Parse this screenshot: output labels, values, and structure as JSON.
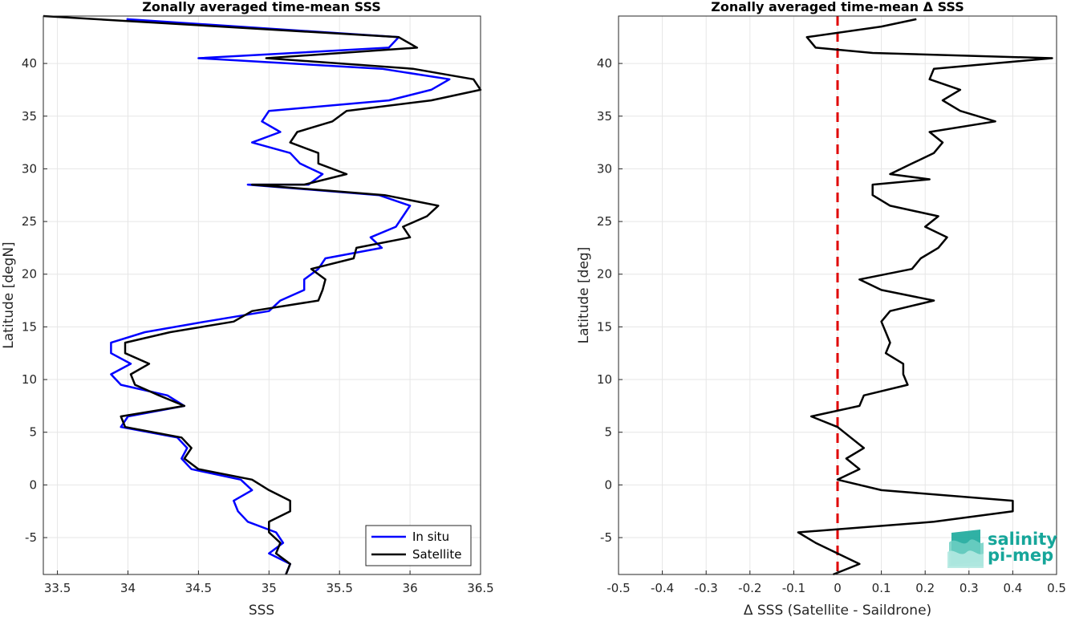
{
  "chart_data": [
    {
      "type": "line",
      "title": "Zonally averaged time-mean SSS",
      "xlabel": "SSS",
      "ylabel": "Latitude [degN]",
      "xlim": [
        33.4,
        36.5
      ],
      "ylim": [
        -8.5,
        44.5
      ],
      "xticks": [
        33.5,
        34,
        34.5,
        35,
        35.5,
        36,
        36.5
      ],
      "xtick_labels": [
        "33.5",
        "34",
        "34.5",
        "35",
        "35.5",
        "36",
        "36.5"
      ],
      "yticks": [
        -5,
        0,
        5,
        10,
        15,
        20,
        25,
        30,
        35,
        40
      ],
      "ytick_labels": [
        "-5",
        "0",
        "5",
        "10",
        "15",
        "20",
        "25",
        "30",
        "35",
        "40"
      ],
      "grid": true,
      "legend": "bottom-right",
      "series": [
        {
          "name": "In situ",
          "color": "#0000ff",
          "points": [
            [
              33.99,
              44.2
            ],
            [
              35.92,
              42.5
            ],
            [
              35.85,
              41.5
            ],
            [
              34.5,
              40.5
            ],
            [
              35.8,
              39.5
            ],
            [
              36.28,
              38.5
            ],
            [
              36.15,
              37.5
            ],
            [
              35.85,
              36.5
            ],
            [
              35.0,
              35.5
            ],
            [
              34.95,
              34.5
            ],
            [
              35.08,
              33.5
            ],
            [
              34.88,
              32.5
            ],
            [
              35.15,
              31.5
            ],
            [
              35.22,
              30.5
            ],
            [
              35.38,
              29.5
            ],
            [
              35.28,
              28.5
            ],
            [
              34.85,
              28.5
            ],
            [
              35.78,
              27.5
            ],
            [
              36.0,
              26.5
            ],
            [
              35.95,
              25.5
            ],
            [
              35.9,
              24.5
            ],
            [
              35.72,
              23.5
            ],
            [
              35.8,
              22.5
            ],
            [
              35.4,
              21.5
            ],
            [
              35.35,
              20.5
            ],
            [
              35.25,
              19.5
            ],
            [
              35.25,
              18.5
            ],
            [
              35.08,
              17.5
            ],
            [
              35.0,
              16.5
            ],
            [
              34.55,
              15.5
            ],
            [
              34.12,
              14.5
            ],
            [
              33.88,
              13.5
            ],
            [
              33.88,
              12.5
            ],
            [
              34.02,
              11.5
            ],
            [
              33.88,
              10.5
            ],
            [
              33.95,
              9.5
            ],
            [
              34.28,
              8.5
            ],
            [
              34.4,
              7.5
            ],
            [
              34.0,
              6.5
            ],
            [
              33.95,
              5.5
            ],
            [
              34.35,
              4.5
            ],
            [
              34.42,
              3.5
            ],
            [
              34.38,
              2.5
            ],
            [
              34.45,
              1.5
            ],
            [
              34.8,
              0.5
            ],
            [
              34.88,
              -0.5
            ],
            [
              34.75,
              -1.5
            ],
            [
              34.78,
              -2.5
            ],
            [
              34.85,
              -3.5
            ],
            [
              35.05,
              -4.5
            ],
            [
              35.1,
              -5.5
            ],
            [
              35.0,
              -6.5
            ],
            [
              35.15,
              -7.5
            ],
            [
              35.12,
              -8.5
            ]
          ]
        },
        {
          "name": "Satellite",
          "color": "#000000",
          "points": [
            [
              33.4,
              44.5
            ],
            [
              35.92,
              42.5
            ],
            [
              36.05,
              41.5
            ],
            [
              34.98,
              40.5
            ],
            [
              36.02,
              39.5
            ],
            [
              36.45,
              38.5
            ],
            [
              36.5,
              37.5
            ],
            [
              36.15,
              36.5
            ],
            [
              35.55,
              35.5
            ],
            [
              35.45,
              34.5
            ],
            [
              35.2,
              33.5
            ],
            [
              35.15,
              32.5
            ],
            [
              35.35,
              31.5
            ],
            [
              35.35,
              30.5
            ],
            [
              35.55,
              29.5
            ],
            [
              35.25,
              28.5
            ],
            [
              34.88,
              28.5
            ],
            [
              35.82,
              27.5
            ],
            [
              36.2,
              26.5
            ],
            [
              36.12,
              25.5
            ],
            [
              35.95,
              24.5
            ],
            [
              36.0,
              23.5
            ],
            [
              35.62,
              22.5
            ],
            [
              35.6,
              21.5
            ],
            [
              35.3,
              20.5
            ],
            [
              35.4,
              19.5
            ],
            [
              35.38,
              18.5
            ],
            [
              35.35,
              17.5
            ],
            [
              34.88,
              16.5
            ],
            [
              34.75,
              15.5
            ],
            [
              34.3,
              14.5
            ],
            [
              33.98,
              13.5
            ],
            [
              33.98,
              12.5
            ],
            [
              34.15,
              11.5
            ],
            [
              34.02,
              10.5
            ],
            [
              34.05,
              9.5
            ],
            [
              34.22,
              8.5
            ],
            [
              34.4,
              7.5
            ],
            [
              33.95,
              6.5
            ],
            [
              33.98,
              5.5
            ],
            [
              34.38,
              4.5
            ],
            [
              34.45,
              3.5
            ],
            [
              34.4,
              2.5
            ],
            [
              34.5,
              1.5
            ],
            [
              34.88,
              0.5
            ],
            [
              35.0,
              -0.5
            ],
            [
              35.15,
              -1.5
            ],
            [
              35.15,
              -2.5
            ],
            [
              35.0,
              -3.5
            ],
            [
              35.0,
              -4.5
            ],
            [
              35.08,
              -5.5
            ],
            [
              35.05,
              -6.5
            ],
            [
              35.15,
              -7.5
            ],
            [
              35.12,
              -8.5
            ]
          ]
        }
      ]
    },
    {
      "type": "line",
      "title": "Zonally averaged time-mean Δ SSS",
      "xlabel": "Δ SSS (Satellite - Saildrone)",
      "ylabel": "Latitude [deg]",
      "xlim": [
        -0.5,
        0.5
      ],
      "ylim": [
        -8.5,
        44.5
      ],
      "xticks": [
        -0.5,
        -0.4,
        -0.3,
        -0.2,
        -0.1,
        0,
        0.1,
        0.2,
        0.3,
        0.4,
        0.5
      ],
      "xtick_labels": [
        "-0.5",
        "-0.4",
        "-0.3",
        "-0.2",
        "-0.1",
        "0",
        "0.1",
        "0.2",
        "0.3",
        "0.4",
        "0.5"
      ],
      "yticks": [
        -5,
        0,
        5,
        10,
        15,
        20,
        25,
        30,
        35,
        40
      ],
      "ytick_labels": [
        "-5",
        "0",
        "5",
        "10",
        "15",
        "20",
        "25",
        "30",
        "35",
        "40"
      ],
      "grid": true,
      "reference_line": {
        "x": 0,
        "color": "#e00000",
        "style": "dashed"
      },
      "series": [
        {
          "color": "#000000",
          "points": [
            [
              0.18,
              44.2
            ],
            [
              0.1,
              43.5
            ],
            [
              -0.07,
              42.5
            ],
            [
              -0.05,
              41.5
            ],
            [
              0.08,
              41.0
            ],
            [
              0.49,
              40.5
            ],
            [
              0.22,
              39.5
            ],
            [
              0.21,
              38.5
            ],
            [
              0.28,
              37.5
            ],
            [
              0.24,
              36.5
            ],
            [
              0.28,
              35.5
            ],
            [
              0.36,
              34.5
            ],
            [
              0.21,
              33.5
            ],
            [
              0.24,
              32.5
            ],
            [
              0.22,
              31.5
            ],
            [
              0.17,
              30.5
            ],
            [
              0.12,
              29.5
            ],
            [
              0.21,
              29.0
            ],
            [
              0.08,
              28.5
            ],
            [
              0.08,
              27.5
            ],
            [
              0.12,
              26.5
            ],
            [
              0.23,
              25.5
            ],
            [
              0.2,
              24.5
            ],
            [
              0.25,
              23.5
            ],
            [
              0.23,
              22.5
            ],
            [
              0.19,
              21.5
            ],
            [
              0.17,
              20.5
            ],
            [
              0.05,
              19.5
            ],
            [
              0.1,
              18.5
            ],
            [
              0.22,
              17.5
            ],
            [
              0.12,
              16.5
            ],
            [
              0.1,
              15.5
            ],
            [
              0.11,
              14.5
            ],
            [
              0.12,
              13.5
            ],
            [
              0.11,
              12.5
            ],
            [
              0.15,
              11.5
            ],
            [
              0.15,
              10.5
            ],
            [
              0.16,
              9.5
            ],
            [
              0.06,
              8.5
            ],
            [
              0.05,
              7.5
            ],
            [
              -0.06,
              6.5
            ],
            [
              0.0,
              5.5
            ],
            [
              0.03,
              4.5
            ],
            [
              0.06,
              3.5
            ],
            [
              0.02,
              2.5
            ],
            [
              0.05,
              1.5
            ],
            [
              0.0,
              0.5
            ],
            [
              0.1,
              -0.5
            ],
            [
              0.4,
              -1.5
            ],
            [
              0.4,
              -2.5
            ],
            [
              0.22,
              -3.5
            ],
            [
              -0.09,
              -4.5
            ],
            [
              -0.05,
              -5.5
            ],
            [
              0.0,
              -6.5
            ],
            [
              0.05,
              -7.5
            ],
            [
              -0.01,
              -8.5
            ]
          ]
        }
      ]
    }
  ],
  "logo": {
    "line1": "salinity",
    "line2": "pi-mep"
  }
}
